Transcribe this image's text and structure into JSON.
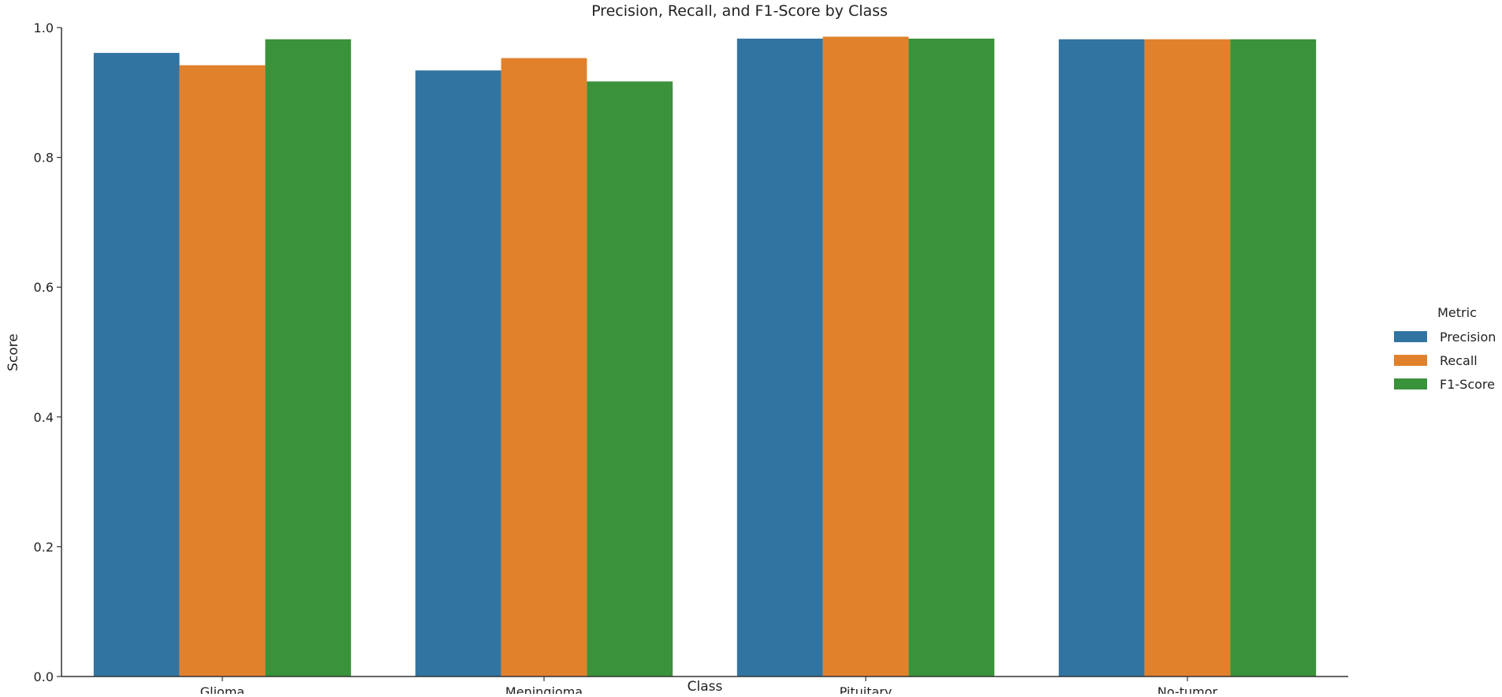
{
  "chart_data": {
    "type": "bar",
    "title": "Precision, Recall, and F1-Score by Class",
    "xlabel": "Class",
    "ylabel": "Score",
    "ylim": [
      0,
      1.0
    ],
    "yticks": [
      "0.0",
      "0.2",
      "0.4",
      "0.6",
      "0.8",
      "1.0"
    ],
    "categories": [
      "Glioma",
      "Meningioma",
      "Pituitary",
      "No-tumor"
    ],
    "legend_title": "Metric",
    "legend_position": "right",
    "grid": false,
    "series": [
      {
        "name": "Precision",
        "color": "#3274a1",
        "values": [
          0.961,
          0.934,
          0.983,
          0.982
        ]
      },
      {
        "name": "Recall",
        "color": "#e1812c",
        "values": [
          0.942,
          0.953,
          0.986,
          0.982
        ]
      },
      {
        "name": "F1-Score",
        "color": "#3a923a",
        "values": [
          0.982,
          0.917,
          0.983,
          0.982
        ]
      }
    ]
  }
}
